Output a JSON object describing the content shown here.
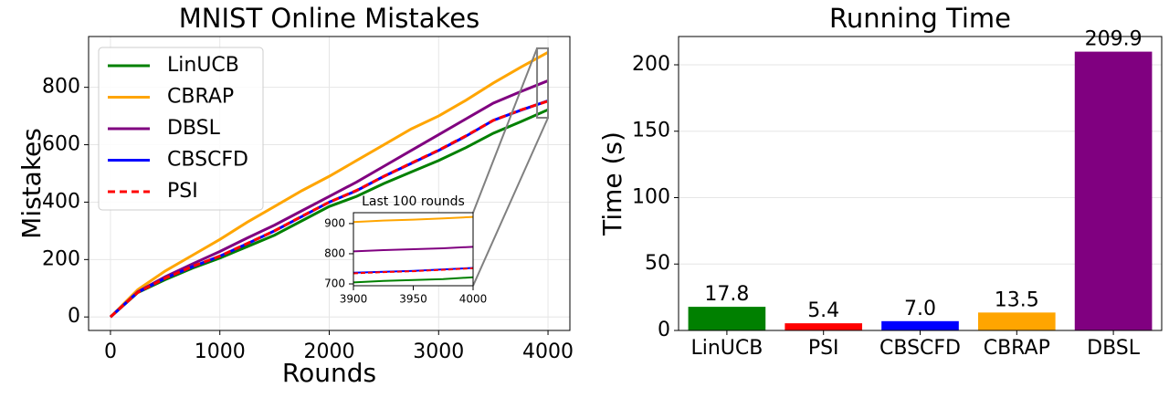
{
  "chart_data": [
    {
      "type": "line",
      "title": "MNIST Online Mistakes",
      "x_label": "Rounds",
      "y_label": "Mistakes",
      "x": [
        0,
        250,
        500,
        750,
        1000,
        1250,
        1500,
        1750,
        2000,
        2250,
        2500,
        2750,
        3000,
        3250,
        3500,
        3750,
        4000
      ],
      "series": [
        {
          "name": "LinUCB",
          "color": "#008000",
          "dash": false,
          "values": [
            0,
            85,
            130,
            170,
            205,
            245,
            285,
            335,
            385,
            420,
            465,
            505,
            545,
            590,
            640,
            680,
            722
          ]
        },
        {
          "name": "CBRAP",
          "color": "#ffa500",
          "dash": false,
          "values": [
            0,
            95,
            160,
            215,
            270,
            330,
            385,
            440,
            490,
            545,
            600,
            655,
            700,
            755,
            815,
            870,
            922
          ]
        },
        {
          "name": "DBSL",
          "color": "#800080",
          "dash": false,
          "values": [
            0,
            88,
            140,
            185,
            228,
            275,
            320,
            370,
            420,
            470,
            525,
            580,
            635,
            690,
            745,
            785,
            823
          ]
        },
        {
          "name": "CBSCFD",
          "color": "#0000ff",
          "dash": false,
          "values": [
            0,
            86,
            135,
            175,
            212,
            255,
            300,
            350,
            400,
            440,
            490,
            535,
            580,
            630,
            685,
            720,
            753
          ]
        },
        {
          "name": "PSI",
          "color": "#ff0000",
          "dash": true,
          "values": [
            0,
            86,
            135,
            176,
            212,
            256,
            300,
            351,
            400,
            441,
            490,
            536,
            581,
            631,
            685,
            721,
            752
          ]
        }
      ],
      "xlim": [
        -200,
        4200
      ],
      "xticks": [
        0,
        1000,
        2000,
        3000,
        4000
      ],
      "ylim": [
        -47,
        977
      ],
      "yticks": [
        0,
        200,
        400,
        600,
        800
      ],
      "grid": true,
      "legend": "upper left",
      "inset": {
        "title": "Last 100 rounds",
        "x": [
          3900,
          3925,
          3950,
          3975,
          4000
        ],
        "series": [
          {
            "values": [
              705,
              710,
              713,
              716,
              722
            ]
          },
          {
            "values": [
              905,
              910,
              913,
              917,
              922
            ]
          },
          {
            "values": [
              808,
              812,
              815,
              818,
              823
            ]
          },
          {
            "values": [
              737,
              740,
              743,
              748,
              753
            ]
          },
          {
            "values": [
              735,
              739,
              742,
              747,
              752
            ]
          }
        ],
        "xlim": [
          3900,
          4000
        ],
        "xticks": [
          3900,
          3950,
          4000
        ],
        "ylim": [
          694,
          936
        ],
        "yticks": [
          700,
          800,
          900
        ]
      }
    },
    {
      "type": "bar",
      "title": "Running Time",
      "y_label": "Time (s)",
      "categories": [
        "LinUCB",
        "PSI",
        "CBSCFD",
        "CBRAP",
        "DBSL"
      ],
      "values": [
        17.8,
        5.4,
        7.0,
        13.5,
        209.9
      ],
      "value_labels": [
        "17.8",
        "5.4",
        "7.0",
        "13.5",
        "209.9"
      ],
      "colors": [
        "#008000",
        "#ff0000",
        "#0000ff",
        "#ffa500",
        "#800080"
      ],
      "ylim": [
        0,
        221.3
      ],
      "yticks": [
        0,
        50,
        100,
        150,
        200
      ],
      "grid": true
    }
  ]
}
